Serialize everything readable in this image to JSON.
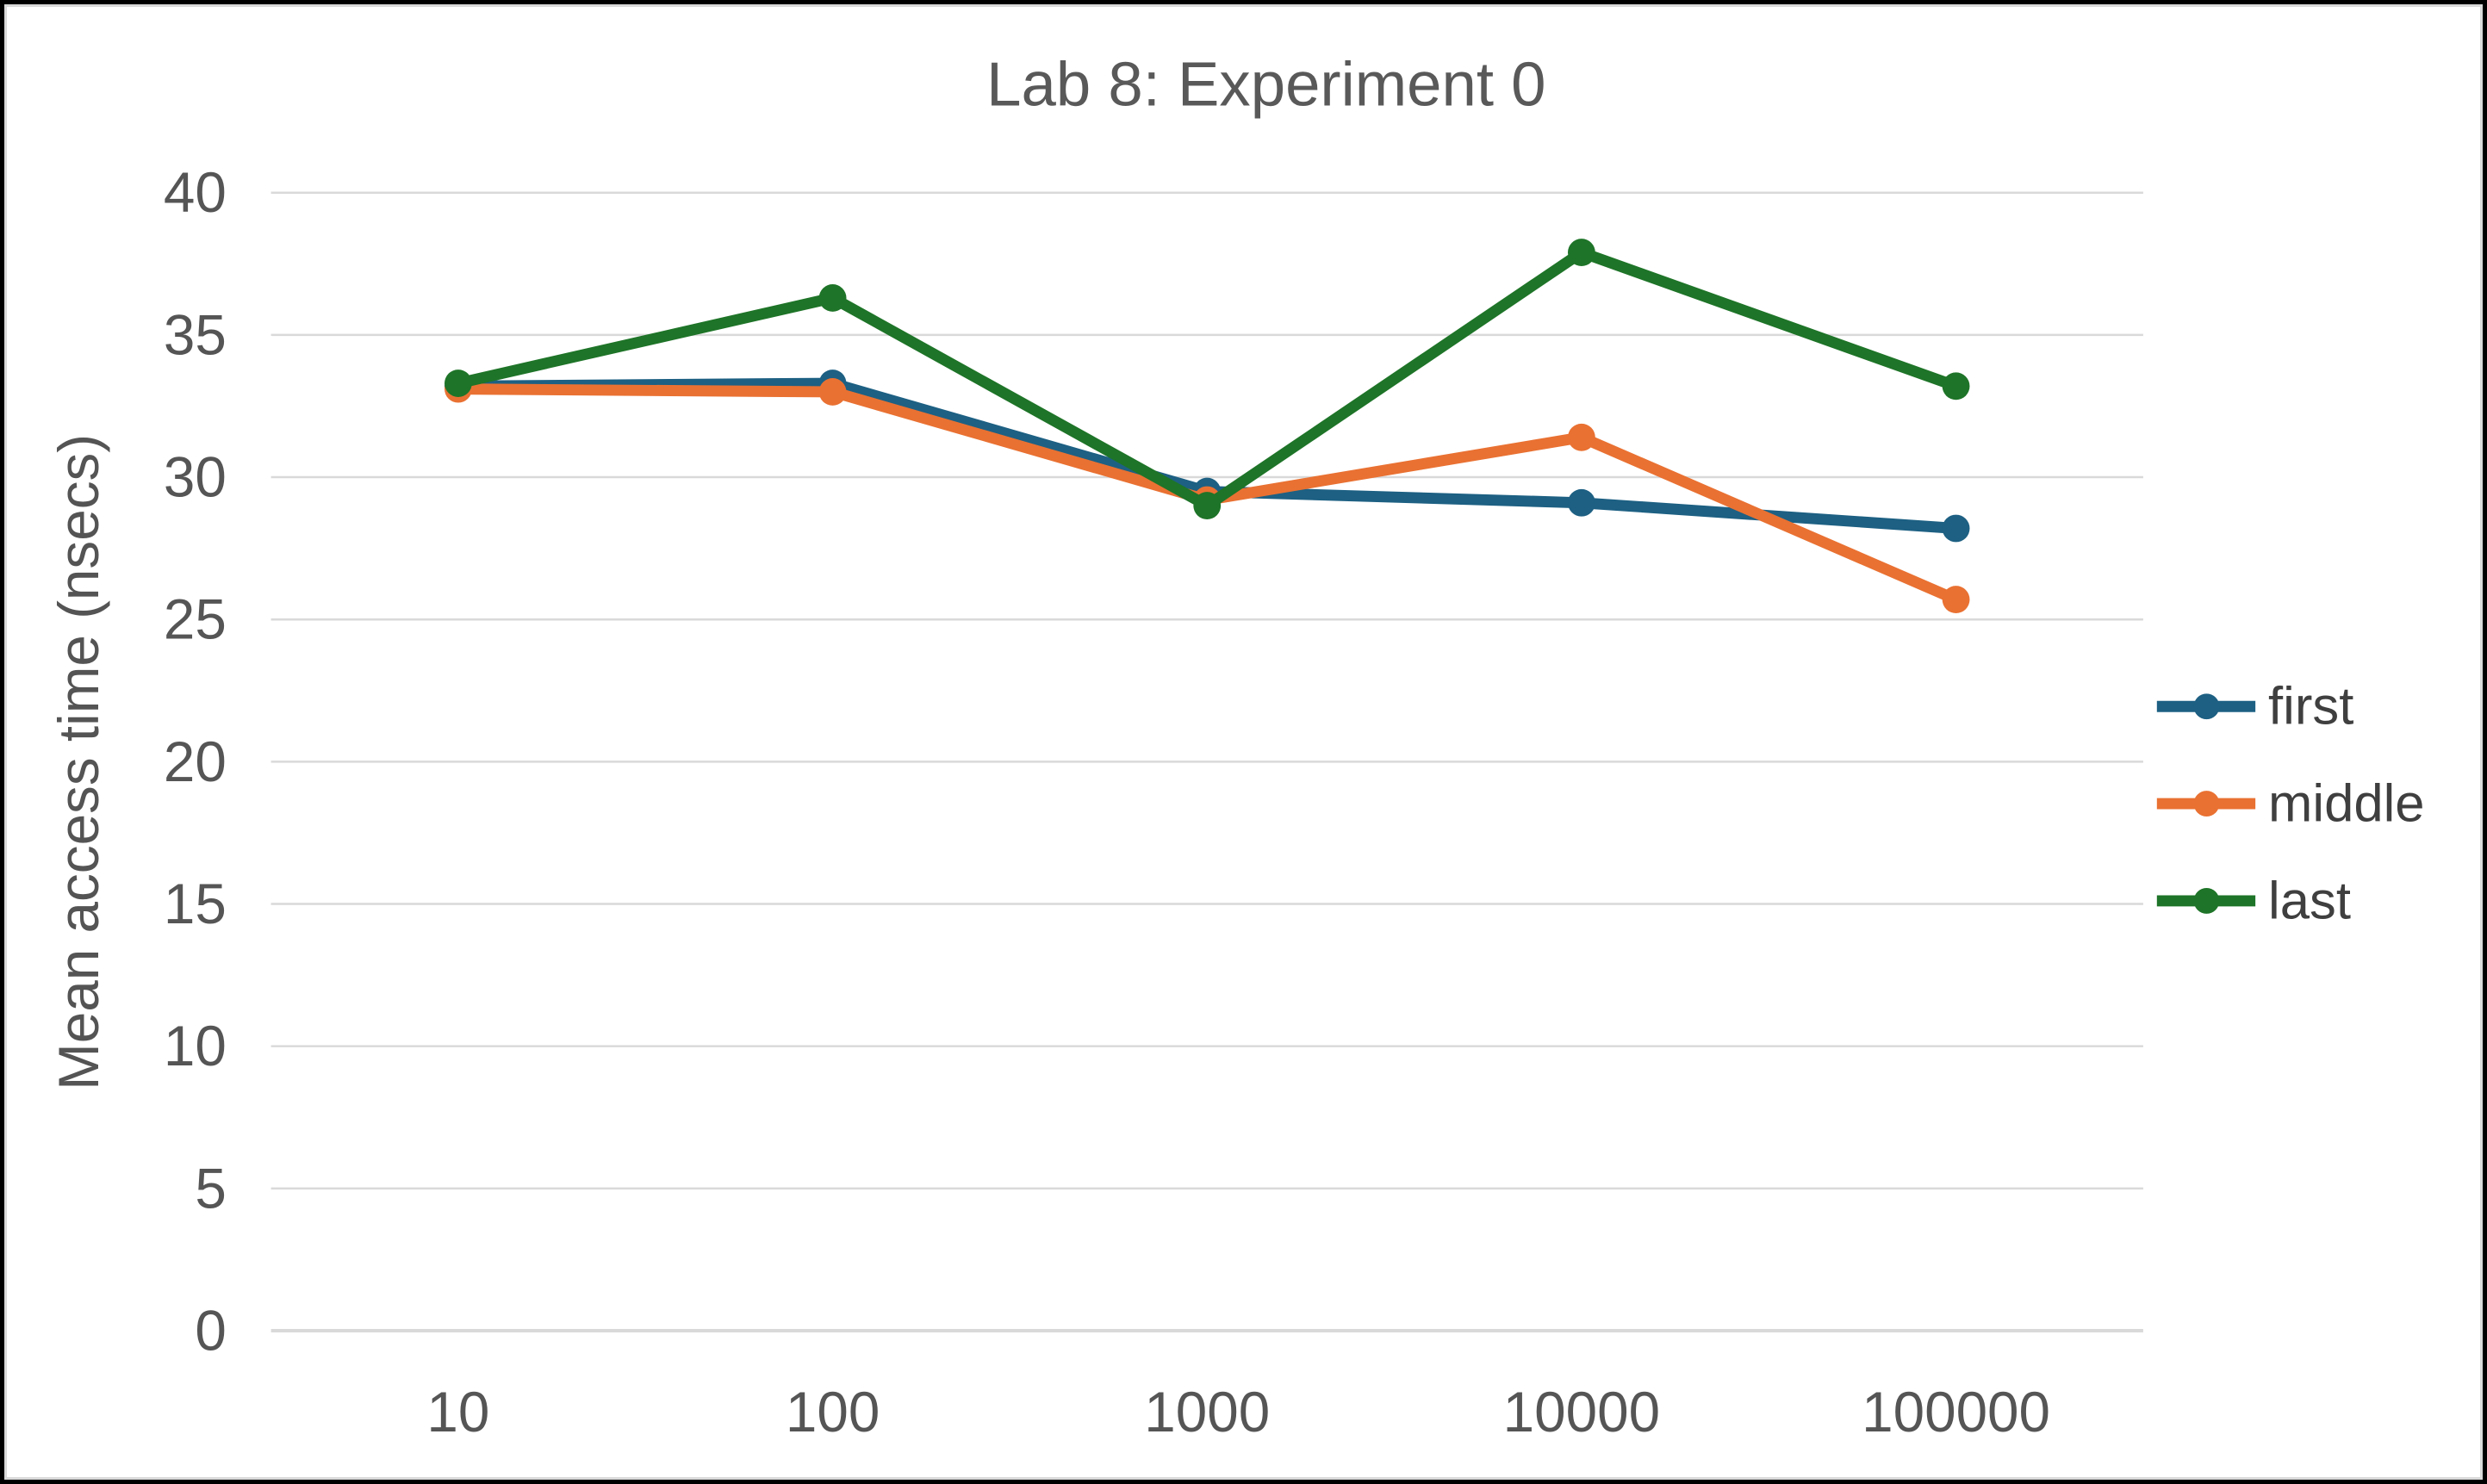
{
  "frame": {
    "border_color": "#000000",
    "inner_border_color": "#D9D9D9",
    "background": "#FFFFFF"
  },
  "chart_data": {
    "type": "line",
    "title": "Lab 8: Experiment 0",
    "xlabel": "",
    "ylabel": "Mean access time (nsecs)",
    "categories": [
      "10",
      "100",
      "1000",
      "10000",
      "100000"
    ],
    "series": [
      {
        "name": "first",
        "color": "#1D6083",
        "values": [
          33.2,
          33.3,
          29.5,
          29.1,
          28.2
        ]
      },
      {
        "name": "middle",
        "color": "#E97132",
        "values": [
          33.1,
          33.0,
          29.2,
          31.4,
          25.7
        ]
      },
      {
        "name": "last",
        "color": "#1E7428",
        "values": [
          33.3,
          36.3,
          29.0,
          37.9,
          33.2
        ]
      }
    ],
    "ylim": [
      0,
      40
    ],
    "ytick_step": 5,
    "yticks": [
      0,
      5,
      10,
      15,
      20,
      25,
      30,
      35,
      40
    ],
    "grid": true,
    "legend_position": "right",
    "marker": "circle",
    "colors": {
      "gridline": "#D9D9D9",
      "axis_line": "#D9D9D9",
      "tick_text": "#555555",
      "title_text": "#595959"
    }
  }
}
